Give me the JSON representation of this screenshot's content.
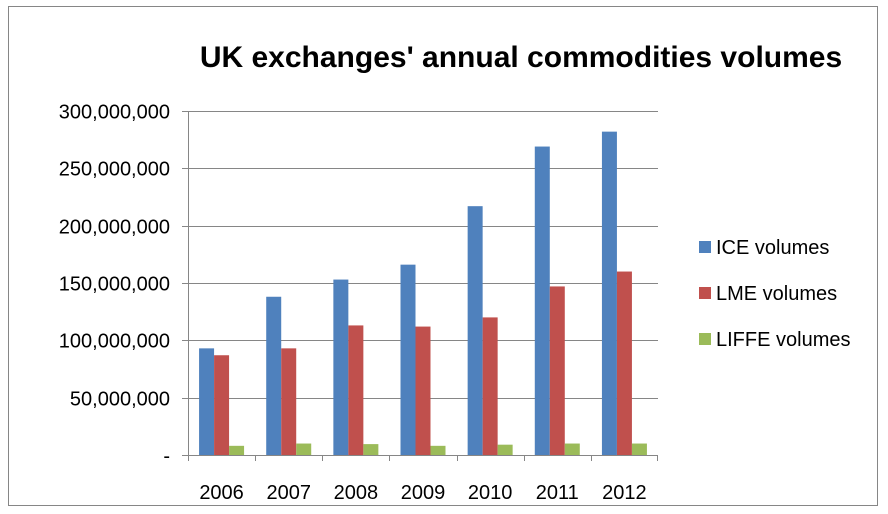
{
  "chart_data": {
    "type": "bar",
    "title": "UK exchanges' annual commodities volumes",
    "xlabel": "",
    "ylabel": "",
    "categories": [
      "2006",
      "2007",
      "2008",
      "2009",
      "2010",
      "2011",
      "2012"
    ],
    "series": [
      {
        "name": "ICE volumes",
        "color": "#4F81BD",
        "values": [
          93000000,
          138000000,
          153000000,
          166000000,
          217000000,
          269000000,
          282000000
        ]
      },
      {
        "name": "LME volumes",
        "color": "#C0504D",
        "values": [
          87000000,
          93000000,
          113000000,
          112000000,
          120000000,
          147000000,
          160000000
        ]
      },
      {
        "name": "LIFFE volumes",
        "color": "#9BBB59",
        "values": [
          8000000,
          10000000,
          9500000,
          8000000,
          9000000,
          10000000,
          10000000
        ]
      }
    ],
    "ylim": [
      0,
      300000000
    ],
    "y_ticks": [
      0,
      50000000,
      100000000,
      150000000,
      200000000,
      250000000,
      300000000
    ],
    "y_tick_labels": [
      "-",
      "50,000,000",
      "100,000,000",
      "150,000,000",
      "200,000,000",
      "250,000,000",
      "300,000,000"
    ],
    "grid": true,
    "legend_position": "right"
  }
}
